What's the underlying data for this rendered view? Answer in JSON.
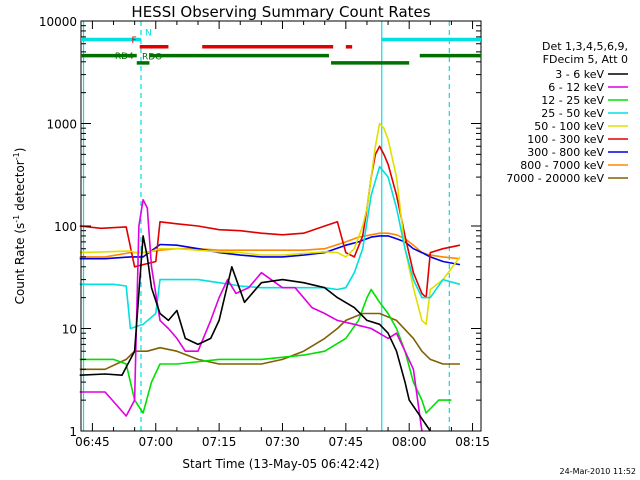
{
  "chart_data": {
    "type": "line",
    "title": "HESSI Observing Summary Count Rates",
    "xlabel": "Start Time (13-May-05 06:42:42)",
    "ylabel_main": "Count Rate (s",
    "ylabel_sup1": "-1",
    "ylabel_mid": " detector",
    "ylabel_sup2": "-1",
    "ylabel_end": ")",
    "x_ticks": [
      "06:45",
      "07:00",
      "07:15",
      "07:30",
      "07:45",
      "08:00",
      "08:15"
    ],
    "y_ticks": [
      "1",
      "10",
      "100",
      "1000",
      "10000"
    ],
    "xlim_min": [
      -2.7,
      92
    ],
    "ylim": [
      1,
      10000
    ],
    "y_scale": "log",
    "x_unit": "minutes since 06:45",
    "legend_header": [
      "Det 1,3,4,5,6,9,",
      "FDecim 5, Att 0"
    ],
    "series": [
      {
        "name": "3 - 6 keV",
        "color": "#000000",
        "points": [
          [
            -3,
            3.5
          ],
          [
            3,
            3.6
          ],
          [
            7,
            3.5
          ],
          [
            10,
            6
          ],
          [
            12,
            80
          ],
          [
            13,
            50
          ],
          [
            14,
            25
          ],
          [
            16,
            14
          ],
          [
            18,
            12
          ],
          [
            20,
            15
          ],
          [
            22,
            8
          ],
          [
            25,
            7
          ],
          [
            28,
            8
          ],
          [
            30,
            12
          ],
          [
            33,
            40
          ],
          [
            36,
            18
          ],
          [
            40,
            28
          ],
          [
            45,
            30
          ],
          [
            50,
            28
          ],
          [
            55,
            25
          ],
          [
            58,
            20
          ],
          [
            62,
            16
          ],
          [
            65,
            12
          ],
          [
            68,
            11
          ],
          [
            70,
            9
          ],
          [
            72,
            6
          ],
          [
            74,
            3
          ],
          [
            75,
            2
          ],
          [
            80,
            1
          ]
        ]
      },
      {
        "name": "6 - 12 keV",
        "color": "#e000e0",
        "points": [
          [
            -3,
            2.4
          ],
          [
            3,
            2.4
          ],
          [
            8,
            1.4
          ],
          [
            10,
            2
          ],
          [
            11,
            100
          ],
          [
            12,
            180
          ],
          [
            13,
            150
          ],
          [
            14,
            40
          ],
          [
            16,
            12
          ],
          [
            18,
            10
          ],
          [
            20,
            8
          ],
          [
            22,
            6
          ],
          [
            25,
            6
          ],
          [
            28,
            12
          ],
          [
            30,
            20
          ],
          [
            32,
            30
          ],
          [
            34,
            22
          ],
          [
            37,
            25
          ],
          [
            40,
            35
          ],
          [
            45,
            25
          ],
          [
            48,
            25
          ],
          [
            52,
            16
          ],
          [
            55,
            14
          ],
          [
            58,
            12
          ],
          [
            62,
            11
          ],
          [
            66,
            10
          ],
          [
            70,
            8
          ],
          [
            72,
            9
          ],
          [
            74,
            6
          ],
          [
            76,
            4
          ],
          [
            78,
            1
          ]
        ]
      },
      {
        "name": "12 - 25 keV",
        "color": "#00e000",
        "points": [
          [
            -3,
            5
          ],
          [
            5,
            5
          ],
          [
            8,
            4.5
          ],
          [
            10,
            2
          ],
          [
            12,
            1.5
          ],
          [
            14,
            3
          ],
          [
            16,
            4.5
          ],
          [
            20,
            4.5
          ],
          [
            30,
            5
          ],
          [
            40,
            5
          ],
          [
            50,
            5.5
          ],
          [
            55,
            6
          ],
          [
            60,
            8
          ],
          [
            63,
            12
          ],
          [
            65,
            20
          ],
          [
            66,
            24
          ],
          [
            68,
            18
          ],
          [
            70,
            14
          ],
          [
            72,
            10
          ],
          [
            74,
            6
          ],
          [
            76,
            3
          ],
          [
            78,
            2
          ],
          [
            79,
            1.5
          ],
          [
            82,
            2
          ],
          [
            85,
            2
          ]
        ]
      },
      {
        "name": "25 - 50 keV",
        "color": "#00e0e0",
        "points": [
          [
            -3,
            27
          ],
          [
            0,
            27
          ],
          [
            5,
            27
          ],
          [
            8,
            26
          ],
          [
            9,
            10
          ],
          [
            12,
            11
          ],
          [
            15,
            14
          ],
          [
            16,
            30
          ],
          [
            20,
            30
          ],
          [
            25,
            30
          ],
          [
            30,
            28
          ],
          [
            35,
            26
          ],
          [
            40,
            25
          ],
          [
            45,
            25
          ],
          [
            50,
            25
          ],
          [
            55,
            25
          ],
          [
            58,
            24
          ],
          [
            60,
            25
          ],
          [
            62,
            35
          ],
          [
            64,
            60
          ],
          [
            66,
            200
          ],
          [
            68,
            380
          ],
          [
            70,
            300
          ],
          [
            72,
            150
          ],
          [
            74,
            60
          ],
          [
            76,
            30
          ],
          [
            78,
            20
          ],
          [
            80,
            20
          ],
          [
            83,
            30
          ],
          [
            87,
            27
          ]
        ]
      },
      {
        "name": "50 - 100 keV",
        "color": "#e0e000",
        "points": [
          [
            -3,
            55
          ],
          [
            3,
            56
          ],
          [
            9,
            57
          ],
          [
            10,
            55
          ],
          [
            13,
            55
          ],
          [
            16,
            60
          ],
          [
            20,
            60
          ],
          [
            25,
            58
          ],
          [
            30,
            56
          ],
          [
            35,
            55
          ],
          [
            40,
            52
          ],
          [
            45,
            52
          ],
          [
            50,
            54
          ],
          [
            55,
            56
          ],
          [
            58,
            55
          ],
          [
            60,
            50
          ],
          [
            62,
            60
          ],
          [
            64,
            100
          ],
          [
            65,
            150
          ],
          [
            66,
            300
          ],
          [
            67,
            600
          ],
          [
            68,
            1000
          ],
          [
            69,
            900
          ],
          [
            70,
            700
          ],
          [
            72,
            300
          ],
          [
            74,
            60
          ],
          [
            76,
            25
          ],
          [
            78,
            12
          ],
          [
            79,
            11
          ],
          [
            80,
            24
          ],
          [
            83,
            30
          ],
          [
            87,
            50
          ]
        ]
      },
      {
        "name": "100 - 300 keV",
        "color": "#e00000",
        "points": [
          [
            -3,
            100
          ],
          [
            2,
            95
          ],
          [
            8,
            98
          ],
          [
            10,
            40
          ],
          [
            12,
            42
          ],
          [
            15,
            45
          ],
          [
            16,
            110
          ],
          [
            20,
            105
          ],
          [
            25,
            100
          ],
          [
            30,
            92
          ],
          [
            35,
            90
          ],
          [
            40,
            85
          ],
          [
            45,
            82
          ],
          [
            50,
            85
          ],
          [
            55,
            100
          ],
          [
            58,
            110
          ],
          [
            60,
            55
          ],
          [
            62,
            50
          ],
          [
            64,
            80
          ],
          [
            65,
            150
          ],
          [
            66,
            300
          ],
          [
            67,
            500
          ],
          [
            68,
            600
          ],
          [
            69,
            500
          ],
          [
            70,
            400
          ],
          [
            72,
            200
          ],
          [
            74,
            80
          ],
          [
            76,
            35
          ],
          [
            78,
            22
          ],
          [
            79,
            20
          ],
          [
            80,
            55
          ],
          [
            83,
            60
          ],
          [
            87,
            65
          ]
        ]
      },
      {
        "name": "300 - 800 keV",
        "color": "#0000e0",
        "points": [
          [
            -3,
            48
          ],
          [
            3,
            48
          ],
          [
            9,
            50
          ],
          [
            12,
            50
          ],
          [
            16,
            66
          ],
          [
            20,
            65
          ],
          [
            25,
            60
          ],
          [
            30,
            55
          ],
          [
            35,
            52
          ],
          [
            40,
            50
          ],
          [
            45,
            50
          ],
          [
            50,
            52
          ],
          [
            55,
            55
          ],
          [
            60,
            65
          ],
          [
            63,
            70
          ],
          [
            66,
            78
          ],
          [
            68,
            80
          ],
          [
            70,
            80
          ],
          [
            72,
            75
          ],
          [
            74,
            70
          ],
          [
            76,
            60
          ],
          [
            78,
            55
          ],
          [
            80,
            50
          ],
          [
            83,
            45
          ],
          [
            87,
            42
          ]
        ]
      },
      {
        "name": "800 - 7000 keV",
        "color": "#ff8800",
        "points": [
          [
            -3,
            50
          ],
          [
            3,
            50
          ],
          [
            9,
            55
          ],
          [
            12,
            55
          ],
          [
            16,
            58
          ],
          [
            20,
            60
          ],
          [
            25,
            60
          ],
          [
            30,
            58
          ],
          [
            35,
            58
          ],
          [
            40,
            58
          ],
          [
            45,
            58
          ],
          [
            50,
            58
          ],
          [
            55,
            60
          ],
          [
            60,
            70
          ],
          [
            63,
            78
          ],
          [
            66,
            82
          ],
          [
            68,
            85
          ],
          [
            70,
            85
          ],
          [
            72,
            82
          ],
          [
            74,
            75
          ],
          [
            76,
            65
          ],
          [
            78,
            55
          ],
          [
            80,
            52
          ],
          [
            83,
            50
          ],
          [
            87,
            48
          ]
        ]
      },
      {
        "name": "7000 - 20000 keV",
        "color": "#806000",
        "points": [
          [
            -3,
            4
          ],
          [
            3,
            4
          ],
          [
            8,
            5
          ],
          [
            10,
            6
          ],
          [
            13,
            6
          ],
          [
            16,
            6.5
          ],
          [
            20,
            6
          ],
          [
            25,
            5
          ],
          [
            30,
            4.5
          ],
          [
            35,
            4.5
          ],
          [
            40,
            4.5
          ],
          [
            45,
            5
          ],
          [
            50,
            6
          ],
          [
            55,
            8
          ],
          [
            58,
            10
          ],
          [
            60,
            12
          ],
          [
            64,
            14
          ],
          [
            68,
            14
          ],
          [
            72,
            12
          ],
          [
            76,
            8
          ],
          [
            78,
            6
          ],
          [
            80,
            5
          ],
          [
            83,
            4.5
          ],
          [
            87,
            4.5
          ]
        ]
      }
    ],
    "flag_bars": [
      {
        "name": "N",
        "color": "#00e0e0",
        "level": 6600,
        "segments": [
          [
            -2.7,
            11.5
          ],
          [
            68.5,
            92
          ]
        ]
      },
      {
        "name": "F",
        "color": "#e00000",
        "level": 5600,
        "segments": [
          [
            11.2,
            18
          ],
          [
            26,
            57
          ],
          [
            60,
            61.5
          ]
        ]
      },
      {
        "name": "RDO",
        "color": "#007000",
        "level": 4600,
        "segments": [
          [
            -2.7,
            10.5
          ],
          [
            13.5,
            56
          ],
          [
            77.5,
            92
          ]
        ]
      },
      {
        "name": "RD4",
        "color": "#007000",
        "level": 3900,
        "segments": [
          [
            10.5,
            13.5
          ],
          [
            56.5,
            75
          ]
        ]
      }
    ],
    "vertical_lines": [
      {
        "x": -2.1,
        "color": "#00e0e0",
        "style": "solid"
      },
      {
        "x": 11.5,
        "color": "#00e0e0",
        "style": "dashed"
      },
      {
        "x": 68.5,
        "color": "#00e0e0",
        "style": "solid"
      },
      {
        "x": 84.5,
        "color": "#00e0e0",
        "style": "dashed"
      }
    ]
  },
  "footer": {
    "timestamp": "24-Mar-2010 11:52"
  }
}
